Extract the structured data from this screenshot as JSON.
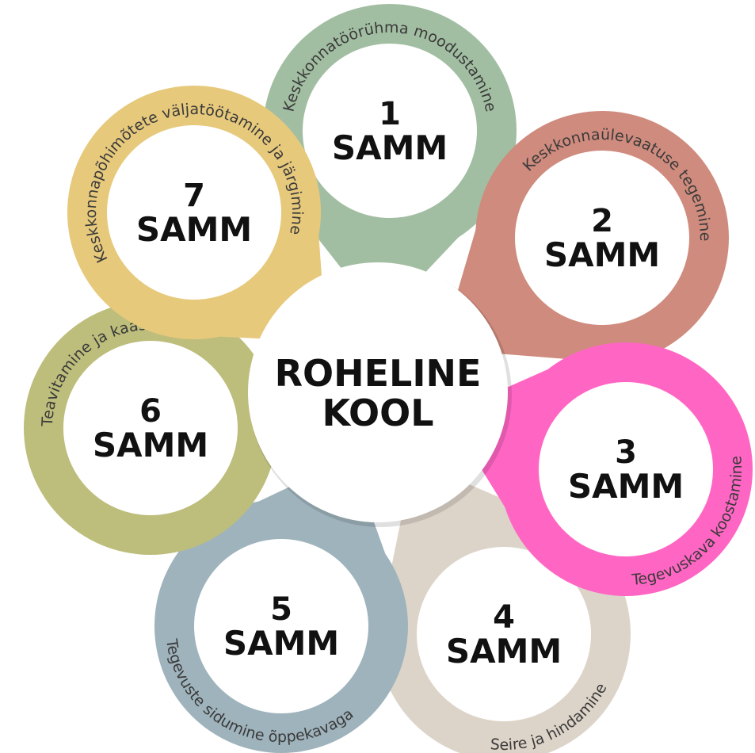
{
  "center": {
    "lines": [
      "ROHELINE",
      "KOOL"
    ]
  },
  "steps": [
    {
      "number": "1",
      "word": "SAMM",
      "label": "Keskkonnatöörühma moodustamine"
    },
    {
      "number": "2",
      "word": "SAMM",
      "label": "Keskkonnaülevaatuse tegemine"
    },
    {
      "number": "3",
      "word": "SAMM",
      "label": "Tegevuskava koostamine"
    },
    {
      "number": "4",
      "word": "SAMM",
      "label": "Seire ja hindamine"
    },
    {
      "number": "5",
      "word": "SAMM",
      "label": "Tegevuste sidumine õppekavaga"
    },
    {
      "number": "6",
      "word": "SAMM",
      "label": "Teavitamine ja kaasamine"
    },
    {
      "number": "7",
      "word": "SAMM",
      "label": "Keskkonnapõhimõtete väljatöötamine ja järgimine"
    }
  ]
}
